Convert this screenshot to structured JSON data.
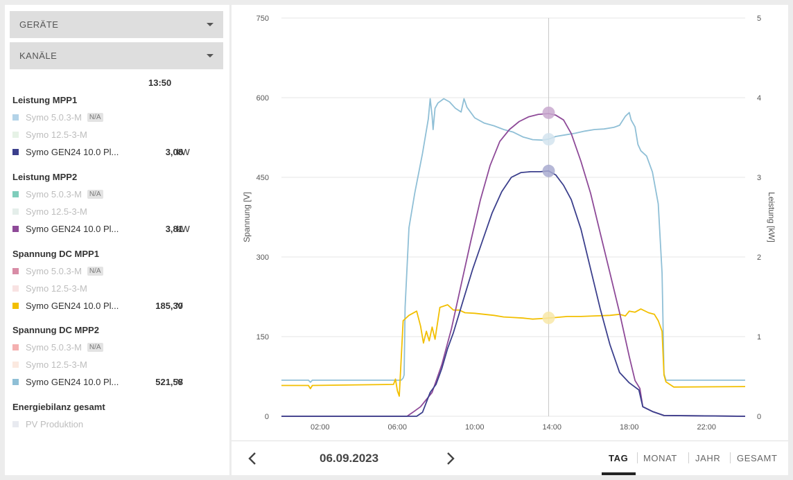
{
  "filters": {
    "devices_label": "GERÄTE",
    "channels_label": "KANÄLE"
  },
  "legend": {
    "time": "13:50",
    "groups": [
      {
        "title": "Leistung MPP1",
        "items": [
          {
            "name": "Symo 5.0.3-M",
            "na": "N/A",
            "color": "#b3d3e8",
            "dim": true
          },
          {
            "name": "Symo 12.5-3-M",
            "color": "#e6f2e6",
            "dim": true
          },
          {
            "name": "Symo GEN24 10.0 Pl...",
            "value": "3,08",
            "unit": "kW",
            "color": "#3b3f8c",
            "dim": false
          }
        ]
      },
      {
        "title": "Leistung MPP2",
        "items": [
          {
            "name": "Symo 5.0.3-M",
            "na": "N/A",
            "color": "#7fcdbb",
            "dim": true
          },
          {
            "name": "Symo 12.5-3-M",
            "color": "#e4eeea",
            "dim": true
          },
          {
            "name": "Symo GEN24 10.0 Pl...",
            "value": "3,81",
            "unit": "kW",
            "color": "#8e4a98",
            "dim": false
          }
        ]
      },
      {
        "title": "Spannung DC MPP1",
        "items": [
          {
            "name": "Symo 5.0.3-M",
            "na": "N/A",
            "color": "#d88ca6",
            "dim": true
          },
          {
            "name": "Symo 12.5-3-M",
            "color": "#f8e2e2",
            "dim": true
          },
          {
            "name": "Symo GEN24 10.0 Pl...",
            "value": "185,30",
            "unit": "V",
            "color": "#f2bf00",
            "dim": false
          }
        ]
      },
      {
        "title": "Spannung DC MPP2",
        "items": [
          {
            "name": "Symo 5.0.3-M",
            "na": "N/A",
            "color": "#f4b0b0",
            "dim": true
          },
          {
            "name": "Symo 12.5-3-M",
            "color": "#fbe9e0",
            "dim": true
          },
          {
            "name": "Symo GEN24 10.0 Pl...",
            "value": "521,58",
            "unit": "V",
            "color": "#8fbfd6",
            "dim": false
          }
        ]
      },
      {
        "title": "Energiebilanz gesamt",
        "items": [
          {
            "name": "PV Produktion",
            "color": "#e8eaf0",
            "dim": true
          }
        ]
      }
    ]
  },
  "navigation": {
    "date": "06.09.2023",
    "prev_icon": "chevron-left-icon",
    "next_icon": "chevron-right-icon",
    "periods": [
      {
        "label": "TAG",
        "active": true
      },
      {
        "label": "MONAT",
        "active": false
      },
      {
        "label": "JAHR",
        "active": false
      },
      {
        "label": "GESAMT",
        "active": false
      }
    ]
  },
  "chart_data": {
    "type": "line",
    "xlabel": "",
    "ylabel": "Spannung [V]",
    "y2label": "Leistung [kW]",
    "x_unit": "hours",
    "xlim": [
      0,
      24
    ],
    "ylim": [
      0,
      750
    ],
    "y2lim": [
      0,
      5
    ],
    "x_ticks": [
      "02:00",
      "06:00",
      "10:00",
      "14:00",
      "18:00",
      "22:00"
    ],
    "y_ticks": [
      "0",
      "150",
      "300",
      "450",
      "600",
      "750"
    ],
    "y2_ticks": [
      "0",
      "1",
      "2",
      "3",
      "4",
      "5"
    ],
    "cursor_x": 13.83,
    "grid": true,
    "series": [
      {
        "name": "Spannung DC MPP2 – Symo GEN24 10.0 Pl...",
        "axis": "left",
        "color": "#8fbfd6",
        "points": [
          [
            0,
            68
          ],
          [
            1.4,
            68
          ],
          [
            1.5,
            64
          ],
          [
            1.6,
            68
          ],
          [
            6.2,
            68
          ],
          [
            6.3,
            72
          ],
          [
            6.35,
            78
          ],
          [
            6.4,
            205
          ],
          [
            6.6,
            355
          ],
          [
            6.9,
            420
          ],
          [
            7.3,
            495
          ],
          [
            7.6,
            560
          ],
          [
            7.7,
            598
          ],
          [
            7.8,
            565
          ],
          [
            7.85,
            540
          ],
          [
            7.95,
            580
          ],
          [
            8.1,
            590
          ],
          [
            8.4,
            598
          ],
          [
            8.7,
            592
          ],
          [
            9.0,
            580
          ],
          [
            9.3,
            573
          ],
          [
            9.45,
            598
          ],
          [
            9.6,
            582
          ],
          [
            10.0,
            562
          ],
          [
            10.5,
            552
          ],
          [
            11.0,
            547
          ],
          [
            11.5,
            540
          ],
          [
            12.0,
            535
          ],
          [
            12.5,
            526
          ],
          [
            13.0,
            521
          ],
          [
            13.5,
            520
          ],
          [
            13.83,
            522
          ],
          [
            14.2,
            527
          ],
          [
            14.7,
            530
          ],
          [
            15.2,
            533
          ],
          [
            15.7,
            537
          ],
          [
            16.2,
            540
          ],
          [
            16.7,
            541
          ],
          [
            17.2,
            544
          ],
          [
            17.5,
            548
          ],
          [
            17.8,
            565
          ],
          [
            18.0,
            572
          ],
          [
            18.1,
            558
          ],
          [
            18.3,
            545
          ],
          [
            18.45,
            512
          ],
          [
            18.6,
            500
          ],
          [
            18.9,
            490
          ],
          [
            19.2,
            460
          ],
          [
            19.5,
            400
          ],
          [
            19.7,
            270
          ],
          [
            19.8,
            80
          ],
          [
            19.9,
            68
          ],
          [
            24,
            68
          ]
        ]
      },
      {
        "name": "Spannung DC MPP1 – Symo GEN24 10.0 Pl...",
        "axis": "left",
        "color": "#f2bf00",
        "points": [
          [
            0,
            58
          ],
          [
            1.4,
            58
          ],
          [
            1.5,
            52
          ],
          [
            1.6,
            58
          ],
          [
            5.8,
            60
          ],
          [
            5.9,
            70
          ],
          [
            6.0,
            48
          ],
          [
            6.1,
            38
          ],
          [
            6.3,
            180
          ],
          [
            6.6,
            190
          ],
          [
            7.0,
            198
          ],
          [
            7.2,
            170
          ],
          [
            7.35,
            138
          ],
          [
            7.5,
            160
          ],
          [
            7.65,
            142
          ],
          [
            7.8,
            168
          ],
          [
            7.95,
            145
          ],
          [
            8.2,
            205
          ],
          [
            8.6,
            210
          ],
          [
            8.9,
            200
          ],
          [
            9.2,
            200
          ],
          [
            9.5,
            195
          ],
          [
            10.0,
            194
          ],
          [
            10.5,
            192
          ],
          [
            11.0,
            190
          ],
          [
            11.5,
            187
          ],
          [
            12.0,
            186
          ],
          [
            12.5,
            185
          ],
          [
            13.0,
            183
          ],
          [
            13.5,
            184
          ],
          [
            13.83,
            185
          ],
          [
            14.2,
            186
          ],
          [
            14.8,
            188
          ],
          [
            15.5,
            188
          ],
          [
            16.2,
            189
          ],
          [
            17.0,
            190
          ],
          [
            17.5,
            192
          ],
          [
            17.8,
            189
          ],
          [
            18.0,
            198
          ],
          [
            18.3,
            196
          ],
          [
            18.6,
            202
          ],
          [
            19.0,
            195
          ],
          [
            19.3,
            192
          ],
          [
            19.5,
            180
          ],
          [
            19.7,
            160
          ],
          [
            19.8,
            78
          ],
          [
            19.9,
            65
          ],
          [
            20.3,
            55
          ],
          [
            24,
            56
          ]
        ]
      },
      {
        "name": "Leistung MPP2 – Symo GEN24 10.0 Pl...",
        "axis": "right",
        "color": "#8e4a98",
        "points": [
          [
            0,
            0
          ],
          [
            6.5,
            0
          ],
          [
            6.8,
            0.05
          ],
          [
            7.2,
            0.12
          ],
          [
            7.8,
            0.3
          ],
          [
            8.3,
            0.65
          ],
          [
            8.8,
            1.1
          ],
          [
            9.3,
            1.65
          ],
          [
            9.8,
            2.2
          ],
          [
            10.3,
            2.72
          ],
          [
            10.8,
            3.15
          ],
          [
            11.3,
            3.45
          ],
          [
            11.8,
            3.6
          ],
          [
            12.3,
            3.7
          ],
          [
            12.8,
            3.76
          ],
          [
            13.3,
            3.79
          ],
          [
            13.83,
            3.8
          ],
          [
            14.2,
            3.78
          ],
          [
            14.6,
            3.72
          ],
          [
            15.0,
            3.55
          ],
          [
            15.5,
            3.2
          ],
          [
            16.0,
            2.8
          ],
          [
            16.5,
            2.3
          ],
          [
            17.0,
            1.8
          ],
          [
            17.5,
            1.3
          ],
          [
            18.0,
            0.75
          ],
          [
            18.3,
            0.45
          ],
          [
            18.55,
            0.35
          ],
          [
            18.7,
            0.12
          ],
          [
            19.2,
            0.06
          ],
          [
            19.8,
            0.01
          ],
          [
            24,
            0
          ]
        ]
      },
      {
        "name": "Leistung MPP1 – Symo GEN24 10.0 Pl...",
        "axis": "right",
        "color": "#3b3f8c",
        "points": [
          [
            0,
            0
          ],
          [
            7.0,
            0
          ],
          [
            7.3,
            0.05
          ],
          [
            7.7,
            0.3
          ],
          [
            8.0,
            0.4
          ],
          [
            8.3,
            0.6
          ],
          [
            8.6,
            0.85
          ],
          [
            8.9,
            1.05
          ],
          [
            9.4,
            1.45
          ],
          [
            9.9,
            1.85
          ],
          [
            10.4,
            2.2
          ],
          [
            10.9,
            2.55
          ],
          [
            11.4,
            2.82
          ],
          [
            11.9,
            3.0
          ],
          [
            12.4,
            3.06
          ],
          [
            12.9,
            3.07
          ],
          [
            13.4,
            3.07
          ],
          [
            13.83,
            3.08
          ],
          [
            14.2,
            3.03
          ],
          [
            14.6,
            2.9
          ],
          [
            15.0,
            2.72
          ],
          [
            15.5,
            2.35
          ],
          [
            16.0,
            1.85
          ],
          [
            16.5,
            1.35
          ],
          [
            17.0,
            0.9
          ],
          [
            17.5,
            0.55
          ],
          [
            18.0,
            0.42
          ],
          [
            18.5,
            0.33
          ],
          [
            18.7,
            0.12
          ],
          [
            19.2,
            0.06
          ],
          [
            19.8,
            0.01
          ],
          [
            24,
            0
          ]
        ]
      }
    ],
    "markers": [
      {
        "axis": "right",
        "value": 3.81,
        "color": "#c9a9cf"
      },
      {
        "axis": "left",
        "value": 521.58,
        "color": "#d4e4ee"
      },
      {
        "axis": "right",
        "value": 3.08,
        "color": "#a9acd0"
      },
      {
        "axis": "left",
        "value": 185.3,
        "color": "#f8e7a8"
      }
    ]
  }
}
